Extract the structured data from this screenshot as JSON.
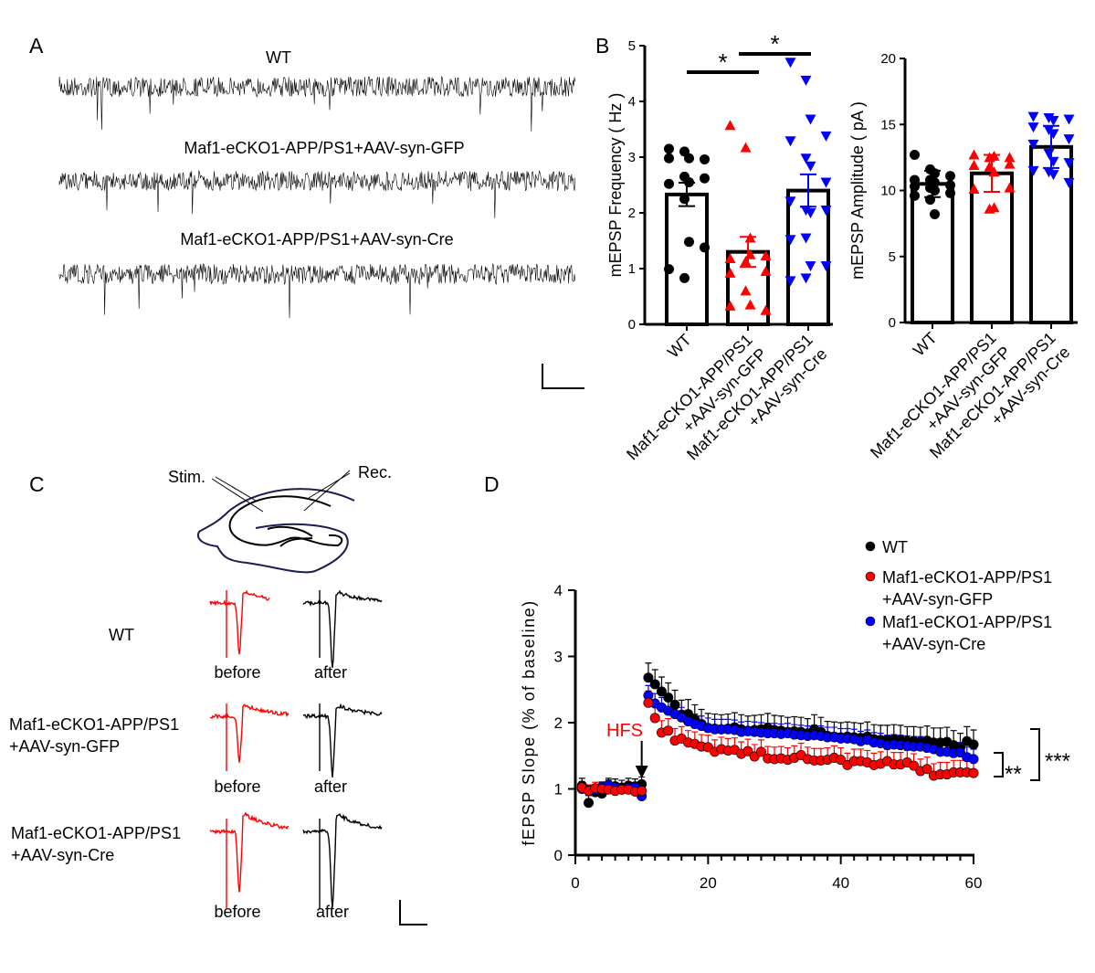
{
  "panels": {
    "A": {
      "letter": "A",
      "traces": [
        "WT",
        "Maf1-eCKO1-APP/PS1+AAV-syn-GFP",
        "Maf1-eCKO1-APP/PS1+AAV-syn-Cre"
      ]
    },
    "B": {
      "letter": "B"
    },
    "C": {
      "letter": "C",
      "stim_label": "Stim.",
      "rec_label": "Rec.",
      "rows": [
        {
          "line1": "WT",
          "line2": ""
        },
        {
          "line1": "Maf1-eCKO1-APP/PS1",
          "line2": "+AAV-syn-GFP"
        },
        {
          "line1": "Maf1-eCKO1-APP/PS1",
          "line2": "+AAV-syn-Cre"
        }
      ],
      "before_label": "before",
      "after_label": "after",
      "colors": {
        "before": "#ff0000",
        "after": "#000000",
        "slice_outline": "#1a1f4d"
      }
    },
    "D": {
      "letter": "D"
    }
  },
  "chart_data": [
    {
      "id": "mepsp-frequency",
      "type": "bar",
      "ylabel": "mEPSP Frequency ( Hz )",
      "ylim": [
        0,
        5
      ],
      "yticks": [
        "0",
        "1",
        "2",
        "3",
        "4",
        "5"
      ],
      "categories": [
        {
          "line1": "WT",
          "line2": ""
        },
        {
          "line1": "Maf1-eCKO1-APP/PS1",
          "line2": "+AAV-syn-GFP"
        },
        {
          "line1": "Maf1-eCKO1-APP/PS1",
          "line2": "+AAV-syn-Cre"
        }
      ],
      "means": [
        2.33,
        1.3,
        2.4
      ],
      "sem": [
        0.21,
        0.27,
        0.29
      ],
      "points": [
        [
          3.15,
          3.1,
          2.98,
          2.96,
          2.98,
          2.65,
          2.55,
          2.62,
          2.52,
          2.25,
          1.48,
          1.38,
          0.99,
          0.83
        ],
        [
          3.57,
          3.17,
          1.55,
          1.23,
          1.18,
          1.13,
          1.25,
          0.95,
          0.92,
          0.6,
          0.35,
          0.25,
          0.33
        ],
        [
          4.7,
          4.38,
          3.68,
          3.38,
          3.29,
          2.98,
          2.84,
          2.55,
          2.21,
          2.05,
          2.0,
          2.05,
          1.52,
          1.55,
          1.05,
          1.05,
          0.78,
          0.83
        ]
      ],
      "markers": [
        "circle",
        "triangle-up",
        "triangle-down"
      ],
      "colors": [
        "#000000",
        "#ff0000",
        "#0000ff"
      ],
      "significance": [
        {
          "pair": [
            0,
            1
          ],
          "label": "*"
        },
        {
          "pair": [
            1,
            2
          ],
          "label": "*"
        }
      ]
    },
    {
      "id": "mepsp-amplitude",
      "type": "bar",
      "ylabel": "mEPSP Amplitude ( pA )",
      "ylim": [
        0,
        20
      ],
      "yticks": [
        "0",
        "5",
        "10",
        "15",
        "20"
      ],
      "categories": [
        {
          "line1": "WT",
          "line2": ""
        },
        {
          "line1": "Maf1-eCKO1-APP/PS1",
          "line2": "+AAV-syn-GFP"
        },
        {
          "line1": "Maf1-eCKO1-APP/PS1",
          "line2": "+AAV-syn-Cre"
        }
      ],
      "means": [
        10.5,
        11.3,
        13.3
      ],
      "sem": [
        1.0,
        1.4,
        1.6
      ],
      "points": [
        [
          12.7,
          11.6,
          11.3,
          11.1,
          10.8,
          10.8,
          10.6,
          10.4,
          10.3,
          10.2,
          10.0,
          9.8,
          9.6,
          9.3,
          8.2
        ],
        [
          12.7,
          12.5,
          12.6,
          12.0,
          11.9,
          11.8,
          11.4,
          10.2,
          10.1,
          8.6,
          8.7,
          12.5
        ],
        [
          15.6,
          15.5,
          15.3,
          15.4,
          14.8,
          14.6,
          14.3,
          13.9,
          13.5,
          12.8,
          12.2,
          12.1,
          11.5,
          11.4,
          11.2,
          10.6
        ]
      ],
      "markers": [
        "circle",
        "triangle-up",
        "triangle-down"
      ],
      "colors": [
        "#000000",
        "#ff0000",
        "#0000ff"
      ]
    },
    {
      "id": "fepsp-slope",
      "type": "scatter",
      "ylabel": "fEPSP Slope (% of baseline)",
      "xlim": [
        0,
        60
      ],
      "ylim": [
        0,
        4
      ],
      "xticks": [
        "0",
        "20",
        "40",
        "60"
      ],
      "yticks": [
        "0",
        "1",
        "2",
        "3",
        "4"
      ],
      "annotation": {
        "label": "HFS",
        "x": 10,
        "color": "#ff0000"
      },
      "legend_position": "top-right",
      "series": [
        {
          "name": "WT",
          "name_line2": "",
          "color": "#000000",
          "sem": 0.22,
          "values": [
            1.05,
            0.79,
            0.95,
            0.93,
            1.05,
            1.04,
            1.02,
            1.05,
            1.04,
            1.07,
            2.68,
            2.58,
            2.47,
            2.38,
            2.27,
            2.12,
            2.13,
            2.05,
            1.98,
            1.92,
            1.91,
            1.9,
            1.91,
            1.93,
            1.9,
            1.88,
            1.89,
            1.9,
            1.92,
            1.89,
            1.88,
            1.86,
            1.87,
            1.86,
            1.84,
            1.9,
            1.86,
            1.8,
            1.79,
            1.78,
            1.79,
            1.78,
            1.77,
            1.79,
            1.75,
            1.74,
            1.74,
            1.75,
            1.74,
            1.72,
            1.72,
            1.71,
            1.73,
            1.7,
            1.7,
            1.71,
            1.66,
            1.62,
            1.72,
            1.67
          ]
        },
        {
          "name": "Maf1-eCKO1-APP/PS1",
          "name_line2": "+AAV-syn-GFP",
          "color": "#ff0000",
          "sem": 0.18,
          "values": [
            1.02,
            0.97,
            1.01,
            1.0,
            0.99,
            0.97,
            0.99,
            0.99,
            0.96,
            0.97,
            2.3,
            2.07,
            1.85,
            1.88,
            1.73,
            1.76,
            1.7,
            1.68,
            1.64,
            1.63,
            1.56,
            1.6,
            1.58,
            1.59,
            1.53,
            1.57,
            1.49,
            1.56,
            1.46,
            1.45,
            1.46,
            1.44,
            1.47,
            1.51,
            1.45,
            1.43,
            1.43,
            1.44,
            1.47,
            1.44,
            1.36,
            1.42,
            1.42,
            1.4,
            1.36,
            1.38,
            1.42,
            1.37,
            1.37,
            1.4,
            1.35,
            1.27,
            1.3,
            1.2,
            1.22,
            1.22,
            1.25,
            1.25,
            1.25,
            1.24
          ]
        },
        {
          "name": "Maf1-eCKO1-APP/PS1",
          "name_line2": "+AAV-syn-Cre",
          "color": "#0000ff",
          "sem": 0.15,
          "values": [
            1.0,
            0.98,
            0.99,
            1.03,
            1.06,
            1.02,
            0.99,
            1.01,
            1.02,
            0.89,
            2.41,
            2.29,
            2.23,
            2.18,
            2.13,
            2.08,
            2.02,
            1.98,
            1.95,
            1.92,
            1.9,
            1.9,
            1.9,
            1.89,
            1.86,
            1.87,
            1.86,
            1.85,
            1.84,
            1.84,
            1.83,
            1.84,
            1.82,
            1.81,
            1.8,
            1.81,
            1.8,
            1.78,
            1.78,
            1.76,
            1.76,
            1.75,
            1.72,
            1.74,
            1.7,
            1.69,
            1.66,
            1.67,
            1.66,
            1.65,
            1.64,
            1.64,
            1.62,
            1.6,
            1.56,
            1.56,
            1.54,
            1.55,
            1.48,
            1.45
          ]
        }
      ],
      "significance": [
        {
          "between": "GFP vs Cre",
          "label": "**"
        },
        {
          "between": "WT vs GFP",
          "label": "***"
        }
      ]
    }
  ]
}
